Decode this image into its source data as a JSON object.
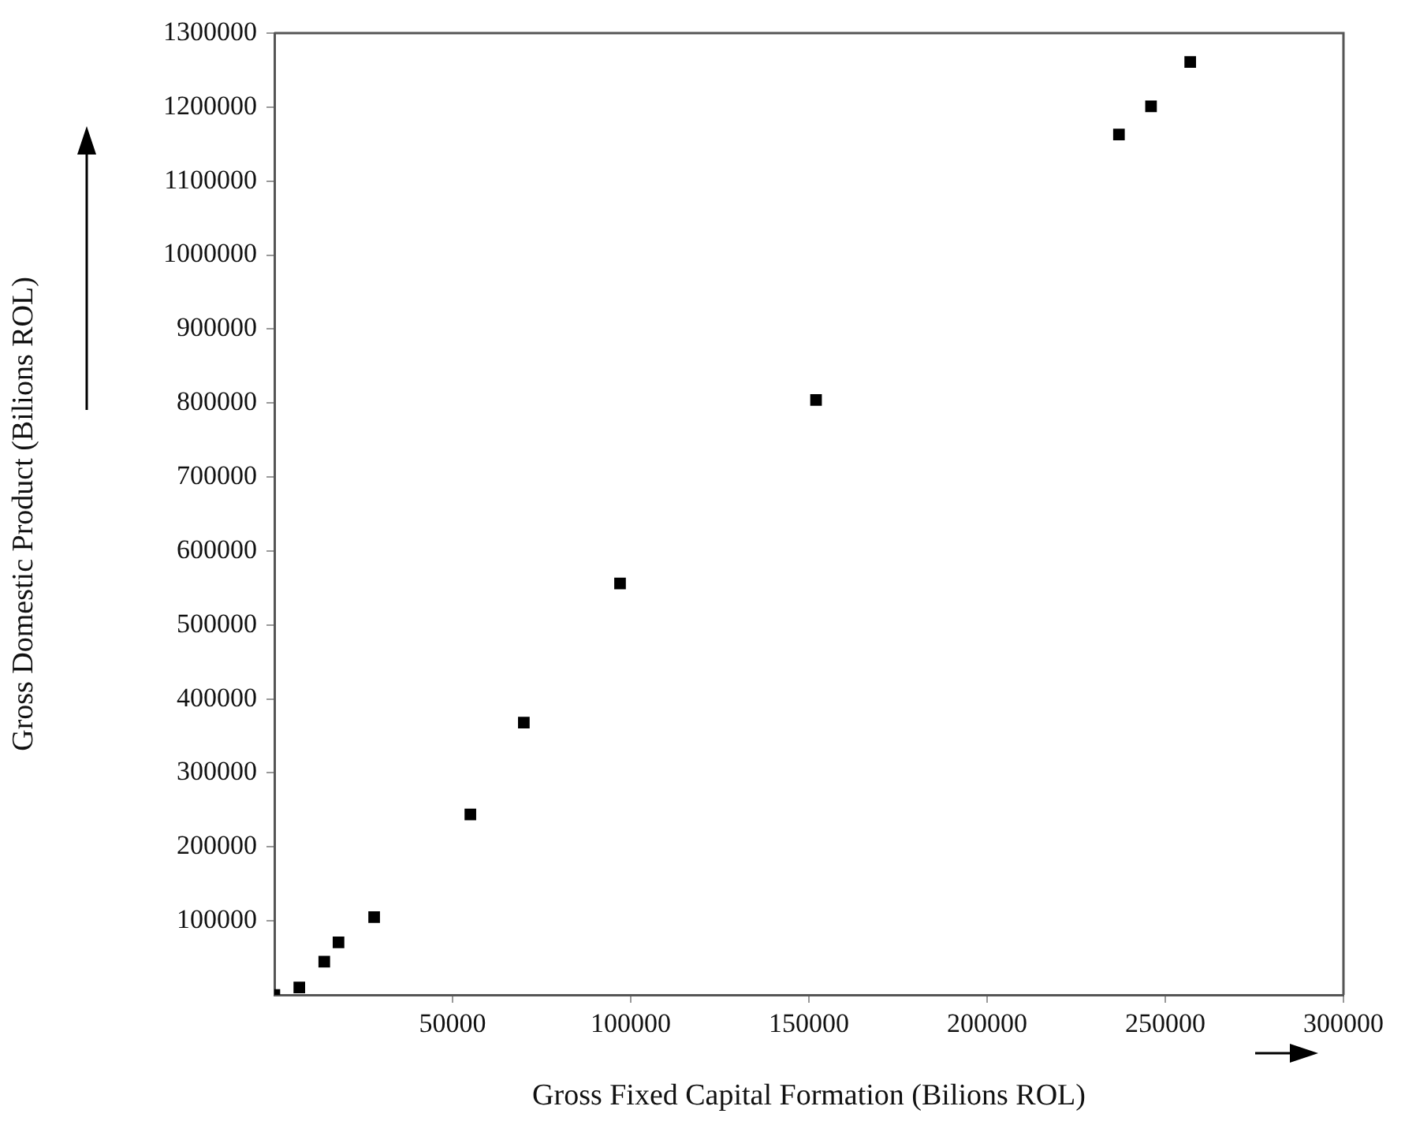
{
  "chart_data": {
    "type": "scatter",
    "xlabel": "Gross Fixed Capital Formation (Bilions ROL)",
    "ylabel": "Gross Domestic Product (Bilions ROL)",
    "x": [
      0,
      7000,
      14000,
      18000,
      28000,
      55000,
      70000,
      97000,
      152000,
      237000,
      246000,
      257000
    ],
    "series": [
      {
        "color": "#000000",
        "values": [
          0,
          10000,
          45000,
          71000,
          105000,
          244000,
          368000,
          556000,
          804000,
          1163000,
          1201000,
          1261000
        ]
      }
    ],
    "xlim": [
      0,
      300000
    ],
    "xticks": [
      50000,
      100000,
      150000,
      200000,
      250000,
      300000
    ],
    "ylim": [
      0,
      1300000
    ],
    "yticks": [
      100000,
      200000,
      300000,
      400000,
      500000,
      600000,
      700000,
      800000,
      900000,
      1000000,
      1100000,
      1200000,
      1300000
    ],
    "marker": "square",
    "grid": false,
    "legend": false
  }
}
